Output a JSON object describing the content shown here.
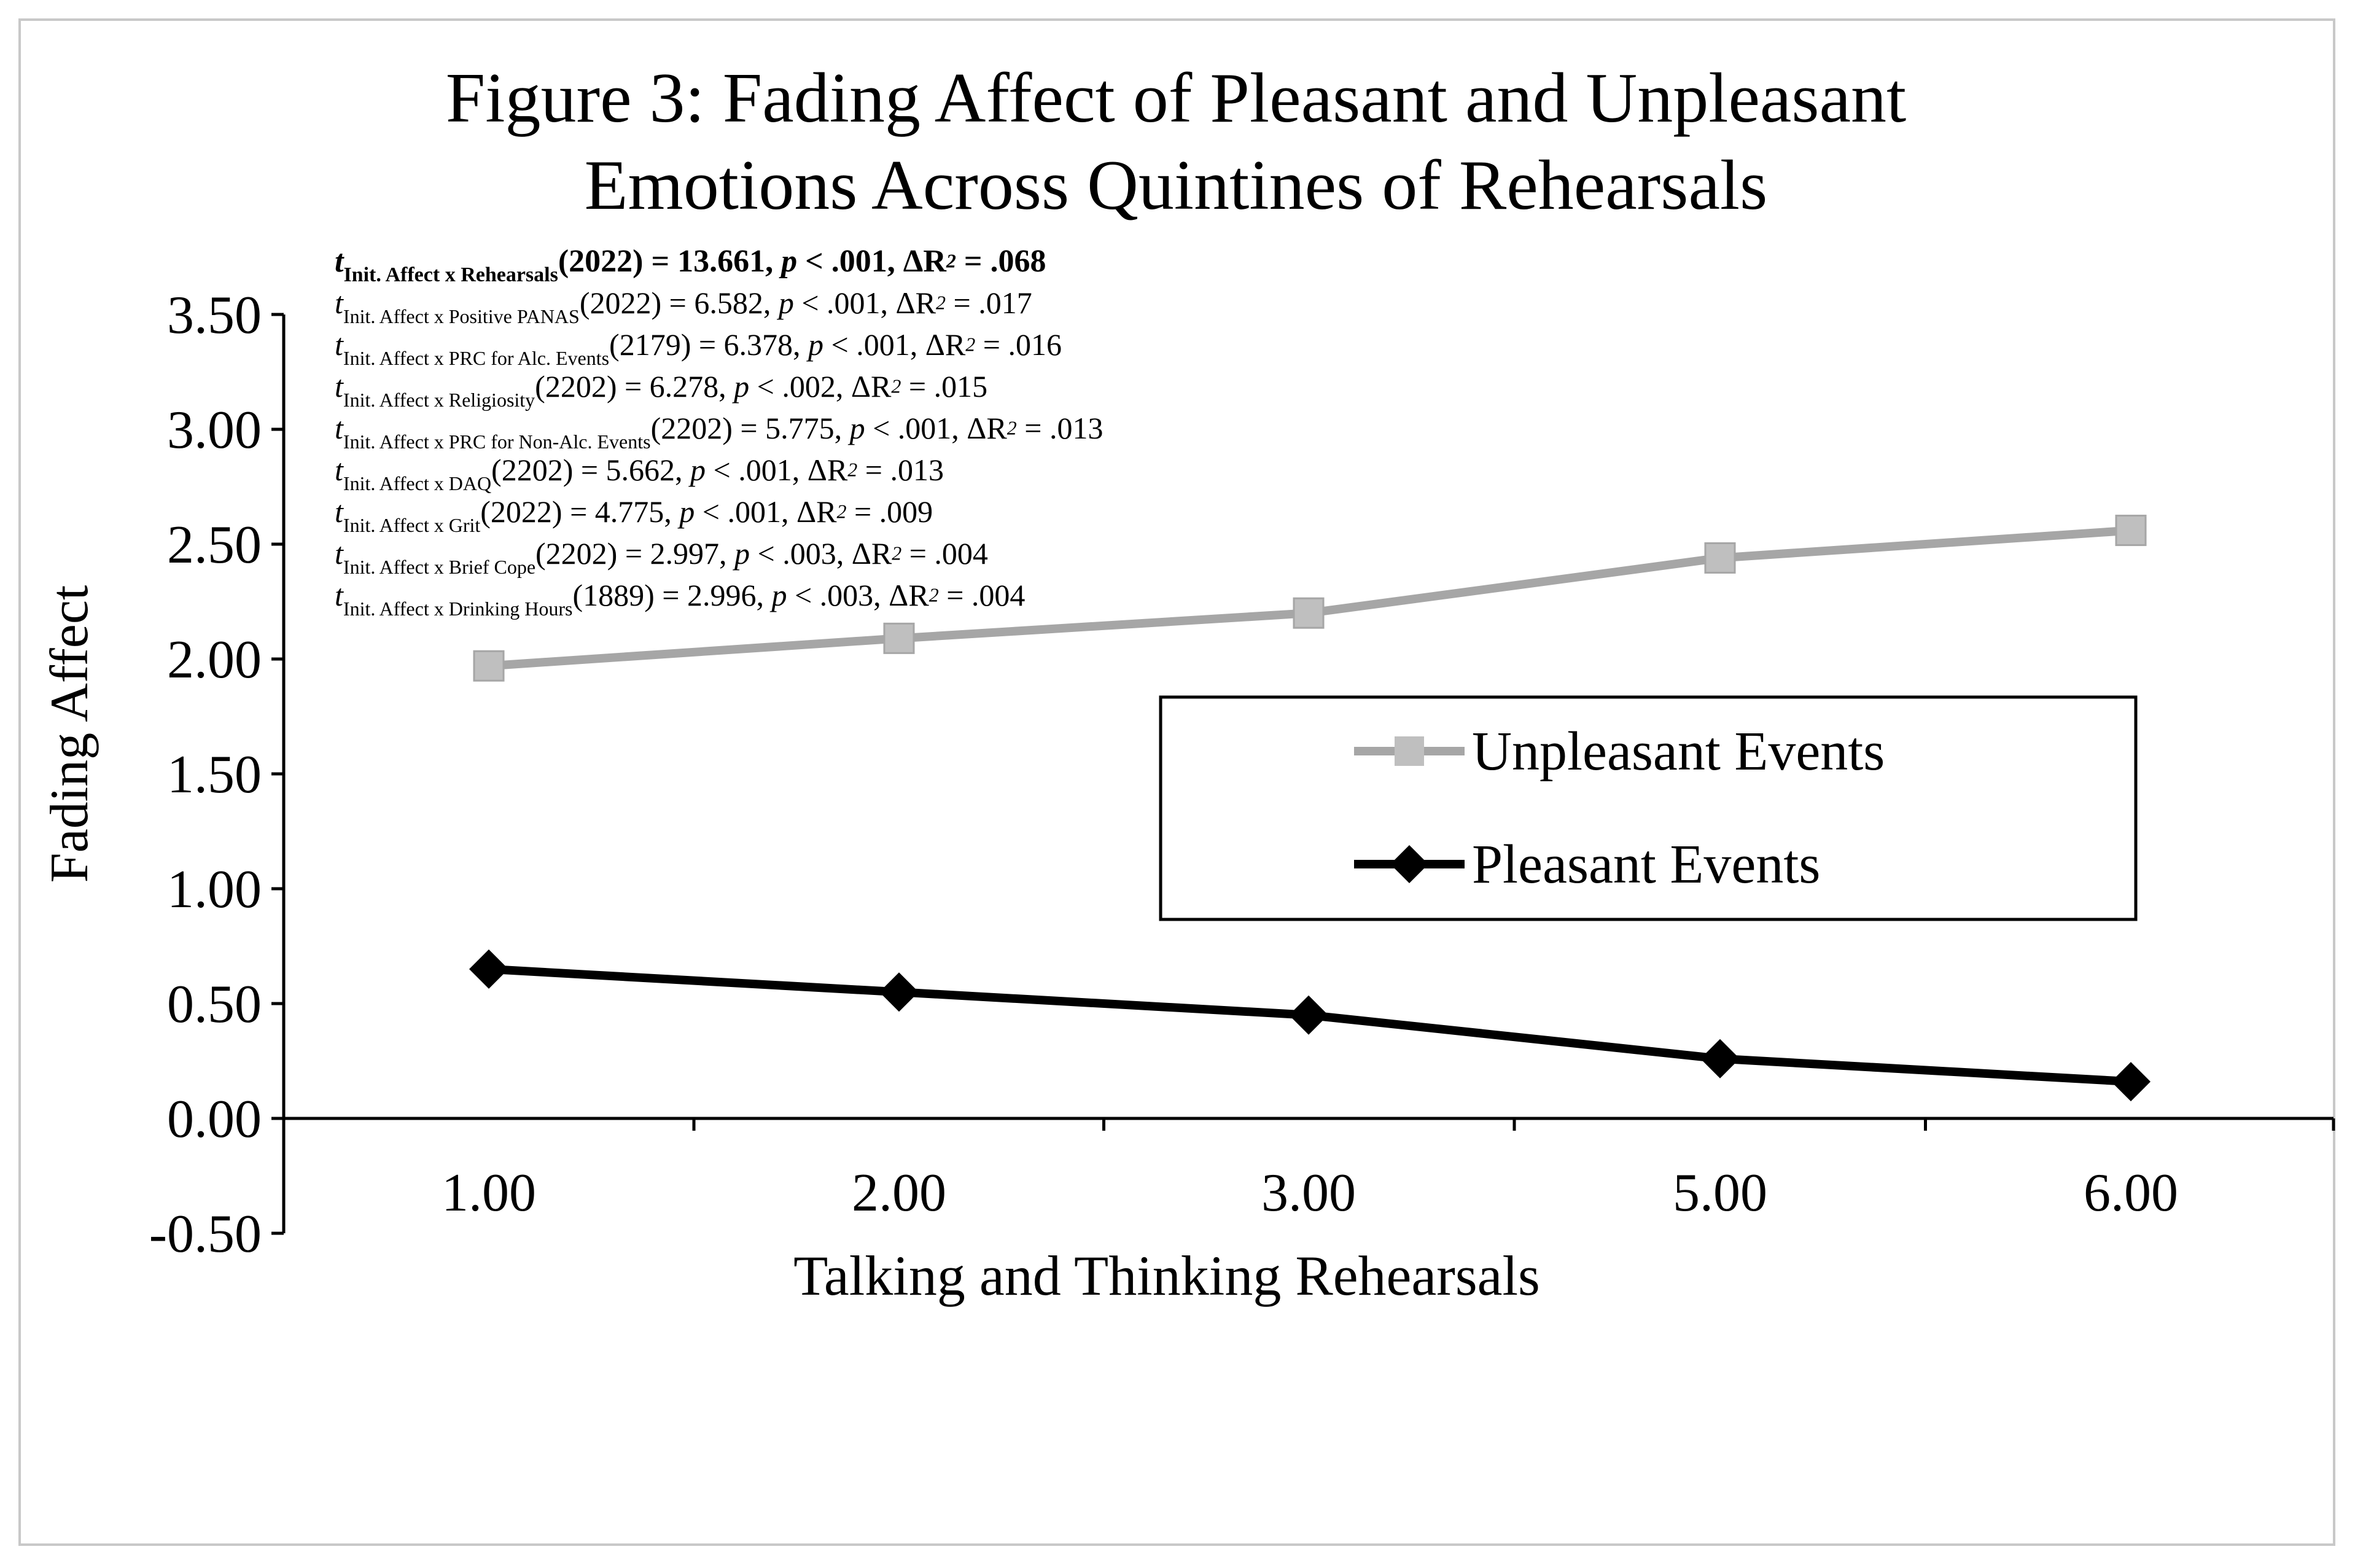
{
  "chart_data": {
    "type": "line",
    "title_lines": [
      "Figure 3: Fading Affect of Pleasant and Unpleasant",
      "Emotions Across Quintines of Rehearsals"
    ],
    "xlabel": "Talking and Thinking Rehearsals",
    "ylabel": "Fading Affect",
    "categories": [
      "1.00",
      "2.00",
      "3.00",
      "5.00",
      "6.00"
    ],
    "y_ticks": [
      "3.50",
      "3.00",
      "2.50",
      "2.00",
      "1.50",
      "1.00",
      "0.50",
      "0.00",
      "-0.50"
    ],
    "ylim": [
      -0.5,
      3.5
    ],
    "grid": false,
    "legend_position": "center-right",
    "series": [
      {
        "name": "Unpleasant Events",
        "color": "#a6a6a6",
        "marker": "square",
        "values": [
          1.97,
          2.09,
          2.2,
          2.44,
          2.56
        ]
      },
      {
        "name": "Pleasant Events",
        "color": "#000000",
        "marker": "diamond",
        "values": [
          0.65,
          0.55,
          0.45,
          0.26,
          0.16
        ]
      }
    ],
    "annotations": [
      {
        "t": "t",
        "sub": "Init. Affect x Rehearsals",
        "rest": "(2022) = 13.661, ",
        "p": "p",
        "p_rest": " < .001, ΔR",
        "sup": "2",
        "end": " = .068",
        "bold": true
      },
      {
        "t": "t",
        "sub": "Init. Affect  x Positive PANAS",
        "rest": "(2022) = 6.582, ",
        "p": "p",
        "p_rest": " < .001,  ΔR",
        "sup": "2",
        "end": " = .017",
        "bold": false
      },
      {
        "t": "t",
        "sub": "Init. Affect  x PRC for Alc. Events",
        "rest": "(2179) = 6.378, ",
        "p": "p",
        "p_rest": " < .001,  ΔR",
        "sup": "2",
        "end": " = .016",
        "bold": false
      },
      {
        "t": "t",
        "sub": "Init. Affect  x Religiosity",
        "rest": "(2202) = 6.278, ",
        "p": "p",
        "p_rest": " < .002,  ΔR",
        "sup": "2",
        "end": " = .015",
        "bold": false
      },
      {
        "t": "t",
        "sub": "Init. Affect  x PRC for Non-Alc. Events",
        "rest": "(2202) = 5.775, ",
        "p": "p",
        "p_rest": " < .001,  ΔR",
        "sup": "2",
        "end": " = .013",
        "bold": false
      },
      {
        "t": "t",
        "sub": "Init. Affect  x DAQ",
        "rest": "(2202) = 5.662, ",
        "p": "p",
        "p_rest": " < .001,  ΔR",
        "sup": "2",
        "end": " = .013",
        "bold": false
      },
      {
        "t": "t",
        "sub": "Init. Affect  x Grit",
        "rest": "(2022) = 4.775, ",
        "p": "p",
        "p_rest": " < .001,  ΔR",
        "sup": "2",
        "end": " = .009",
        "bold": false
      },
      {
        "t": "t",
        "sub": "Init. Affect  x Brief Cope",
        "rest": "(2202) = 2.997, ",
        "p": "p",
        "p_rest": " < .003,  ΔR",
        "sup": "2",
        "end": " = .004",
        "bold": false
      },
      {
        "t": "t",
        "sub": "Init. Affect  x Drinking Hours",
        "rest": "(1889) = 2.996, ",
        "p": "p",
        "p_rest": " < .003,  ΔR",
        "sup": "2",
        "end": " = .004",
        "bold": false
      }
    ]
  }
}
